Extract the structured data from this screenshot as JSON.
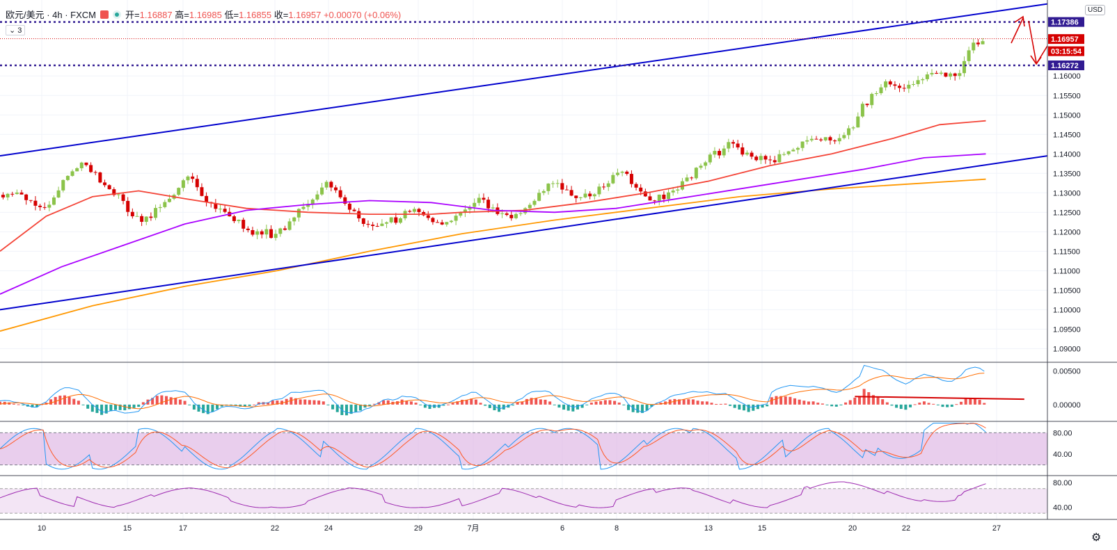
{
  "header": {
    "symbol": "欧元/美元 · 4h · FXCM",
    "open_label": "开",
    "open_value": "1.16887",
    "high_label": "高",
    "high_value": "1.16985",
    "low_label": "低",
    "low_value": "1.16855",
    "close_label": "收",
    "close_value": "1.16957",
    "change_value": "+0.00070 (+0.06%)",
    "indicator_toggle": "3",
    "currency_button": "USD"
  },
  "price_labels": {
    "upper_line": "1.17386",
    "current": "1.16957",
    "countdown": "03:15:54",
    "lower_line": "1.16272"
  },
  "colors": {
    "up": "#8bc34a",
    "down": "#d50000",
    "channel": "#0000cd",
    "ma_red": "#f44336",
    "ma_purple": "#aa00ff",
    "ma_orange": "#ff9800",
    "hline_dotted": "#311b92",
    "rsi_band_fill": "#e1bee7",
    "macd_line": "#2196f3",
    "signal_line": "#ff6d00"
  },
  "chart_data": [
    {
      "type": "candlestick",
      "pane": "price",
      "x_tick_labels": [
        "10",
        "15",
        "17",
        "22",
        "24",
        "29",
        "7月",
        "6",
        "8",
        "13",
        "15",
        "20",
        "22",
        "27"
      ],
      "y_tick_labels": [
        "1.16000",
        "1.15500",
        "1.15000",
        "1.14500",
        "1.14000",
        "1.13500",
        "1.13000",
        "1.12500",
        "1.12000",
        "1.11500",
        "1.11000",
        "1.10500",
        "1.10000",
        "1.09500",
        "1.09000"
      ],
      "ylim": [
        1.0865,
        1.1795
      ],
      "close_path": [
        [
          0,
          1.1295
        ],
        [
          8,
          1.13
        ],
        [
          14,
          1.129
        ],
        [
          22,
          1.127
        ],
        [
          28,
          1.126
        ],
        [
          34,
          1.128
        ],
        [
          40,
          1.132
        ],
        [
          48,
          1.136
        ],
        [
          54,
          1.138
        ],
        [
          60,
          1.1355
        ],
        [
          66,
          1.133
        ],
        [
          72,
          1.1305
        ],
        [
          78,
          1.129
        ],
        [
          82,
          1.126
        ],
        [
          86,
          1.124
        ],
        [
          92,
          1.1225
        ],
        [
          100,
          1.125
        ],
        [
          106,
          1.127
        ],
        [
          112,
          1.13
        ],
        [
          118,
          1.132
        ],
        [
          124,
          1.134
        ],
        [
          130,
          1.129
        ],
        [
          134,
          1.1275
        ],
        [
          140,
          1.126
        ],
        [
          146,
          1.1245
        ],
        [
          152,
          1.1235
        ],
        [
          156,
          1.122
        ],
        [
          160,
          1.1205
        ],
        [
          166,
          1.1195
        ],
        [
          172,
          1.1205
        ],
        [
          176,
          1.119
        ],
        [
          180,
          1.12
        ],
        [
          186,
          1.1215
        ],
        [
          190,
          1.124
        ],
        [
          196,
          1.1255
        ],
        [
          200,
          1.127
        ],
        [
          206,
          1.13
        ],
        [
          210,
          1.132
        ],
        [
          214,
          1.1325
        ],
        [
          218,
          1.13
        ],
        [
          222,
          1.1285
        ],
        [
          226,
          1.126
        ],
        [
          232,
          1.124
        ],
        [
          236,
          1.1225
        ],
        [
          242,
          1.1215
        ],
        [
          248,
          1.122
        ],
        [
          252,
          1.123
        ],
        [
          258,
          1.1225
        ],
        [
          262,
          1.124
        ],
        [
          266,
          1.126
        ],
        [
          270,
          1.1255
        ],
        [
          276,
          1.124
        ],
        [
          282,
          1.123
        ],
        [
          288,
          1.122
        ],
        [
          294,
          1.1225
        ],
        [
          298,
          1.124
        ],
        [
          302,
          1.125
        ],
        [
          308,
          1.127
        ],
        [
          312,
          1.129
        ],
        [
          316,
          1.127
        ],
        [
          322,
          1.125
        ],
        [
          328,
          1.124
        ],
        [
          332,
          1.123
        ],
        [
          336,
          1.124
        ],
        [
          342,
          1.126
        ],
        [
          348,
          1.129
        ],
        [
          354,
          1.131
        ],
        [
          360,
          1.133
        ],
        [
          364,
          1.132
        ],
        [
          368,
          1.13
        ],
        [
          374,
          1.129
        ],
        [
          380,
          1.129
        ],
        [
          386,
          1.13
        ],
        [
          392,
          1.132
        ],
        [
          398,
          1.134
        ],
        [
          404,
          1.1355
        ],
        [
          408,
          1.134
        ],
        [
          412,
          1.131
        ],
        [
          418,
          1.129
        ],
        [
          424,
          1.128
        ],
        [
          430,
          1.129
        ],
        [
          436,
          1.13
        ],
        [
          442,
          1.132
        ],
        [
          448,
          1.134
        ],
        [
          452,
          1.136
        ],
        [
          458,
          1.138
        ],
        [
          464,
          1.14
        ],
        [
          470,
          1.141
        ],
        [
          474,
          1.143
        ],
        [
          478,
          1.142
        ],
        [
          484,
          1.14
        ],
        [
          490,
          1.139
        ],
        [
          496,
          1.1385
        ],
        [
          502,
          1.138
        ],
        [
          508,
          1.14
        ],
        [
          514,
          1.141
        ],
        [
          518,
          1.142
        ],
        [
          524,
          1.143
        ],
        [
          530,
          1.144
        ],
        [
          536,
          1.1445
        ],
        [
          542,
          1.144
        ],
        [
          546,
          1.1435
        ],
        [
          550,
          1.145
        ],
        [
          556,
          1.149
        ],
        [
          560,
          1.152
        ],
        [
          566,
          1.1545
        ],
        [
          570,
          1.1565
        ],
        [
          576,
          1.159
        ],
        [
          582,
          1.1575
        ],
        [
          588,
          1.157
        ],
        [
          594,
          1.1575
        ],
        [
          600,
          1.16
        ],
        [
          604,
          1.161
        ],
        [
          610,
          1.16
        ],
        [
          616,
          1.1605
        ],
        [
          622,
          1.161
        ],
        [
          626,
          1.163
        ],
        [
          630,
          1.167
        ],
        [
          636,
          1.169
        ],
        [
          640,
          1.1696
        ]
      ],
      "series": [
        {
          "name": "",
          "color": "ma_red",
          "values": [
            [
              0,
              1.115
            ],
            [
              30,
              1.124
            ],
            [
              60,
              1.129
            ],
            [
              90,
              1.1305
            ],
            [
              120,
              1.1285
            ],
            [
              160,
              1.126
            ],
            [
              200,
              1.125
            ],
            [
              240,
              1.1245
            ],
            [
              280,
              1.1245
            ],
            [
              300,
              1.125
            ],
            [
              340,
              1.1255
            ],
            [
              380,
              1.1275
            ],
            [
              420,
              1.13
            ],
            [
              460,
              1.133
            ],
            [
              500,
              1.137
            ],
            [
              540,
              1.14
            ],
            [
              580,
              1.144
            ],
            [
              610,
              1.1475
            ],
            [
              640,
              1.1485
            ]
          ]
        },
        {
          "name": "",
          "color": "ma_purple",
          "values": [
            [
              0,
              1.104
            ],
            [
              40,
              1.111
            ],
            [
              80,
              1.1165
            ],
            [
              120,
              1.122
            ],
            [
              160,
              1.1255
            ],
            [
              200,
              1.127
            ],
            [
              240,
              1.128
            ],
            [
              280,
              1.1275
            ],
            [
              320,
              1.1255
            ],
            [
              360,
              1.125
            ],
            [
              400,
              1.126
            ],
            [
              440,
              1.1285
            ],
            [
              480,
              1.131
            ],
            [
              520,
              1.1335
            ],
            [
              560,
              1.136
            ],
            [
              600,
              1.139
            ],
            [
              640,
              1.14
            ]
          ]
        },
        {
          "name": "",
          "color": "ma_orange",
          "values": [
            [
              0,
              1.0945
            ],
            [
              60,
              1.101
            ],
            [
              120,
              1.106
            ],
            [
              180,
              1.11
            ],
            [
              240,
              1.115
            ],
            [
              300,
              1.1195
            ],
            [
              360,
              1.123
            ],
            [
              420,
              1.126
            ],
            [
              480,
              1.129
            ],
            [
              540,
              1.131
            ],
            [
              600,
              1.1325
            ],
            [
              640,
              1.1335
            ]
          ]
        },
        {
          "name": "",
          "color": "channel",
          "values": [
            [
              0,
              1.1395
            ],
            [
              680,
              1.1785
            ]
          ]
        },
        {
          "name": "",
          "color": "channel",
          "values": [
            [
              0,
              1.1
            ],
            [
              680,
              1.1395
            ]
          ]
        }
      ],
      "horizontal_lines": [
        1.17386,
        1.16272,
        1.16957
      ]
    },
    {
      "type": "macd",
      "pane": "macd",
      "y_tick_labels": [
        "0.00500",
        "0.00000"
      ],
      "ylim": [
        -0.0025,
        0.0062
      ]
    },
    {
      "type": "stochastic",
      "pane": "stoch",
      "y_tick_labels": [
        "80.00",
        "40.00"
      ],
      "ylim": [
        0,
        100
      ],
      "band": [
        20,
        80
      ]
    },
    {
      "type": "rsi",
      "pane": "rsi",
      "y_tick_labels": [
        "80.00",
        "40.00"
      ],
      "ylim": [
        20,
        90
      ],
      "band": [
        30,
        70
      ]
    }
  ]
}
